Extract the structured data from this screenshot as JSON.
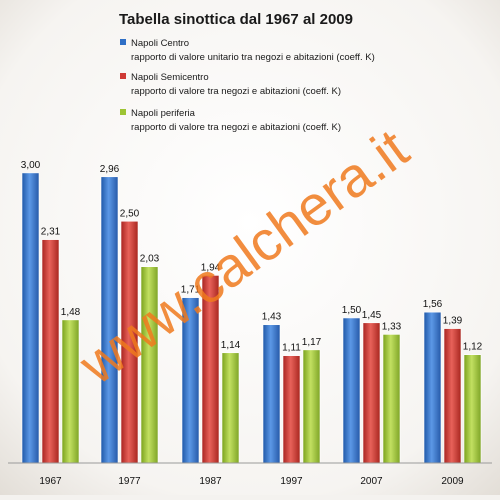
{
  "chart_data": {
    "type": "bar",
    "title": "Tabella sinottica  dal 1967 al 2009",
    "categories": [
      "1967",
      "1977",
      "1987",
      "1997",
      "2007",
      "2009"
    ],
    "series": [
      {
        "name": "Napoli Centro",
        "description": "rapporto di valore unitario   tra negozi e abitazioni (coeff. K)",
        "color": "#2f6fc6",
        "values": [
          3.0,
          2.96,
          1.71,
          1.43,
          1.5,
          1.56
        ],
        "labels": [
          "3,00",
          "2,96",
          "1,71",
          "1,43",
          "1,50",
          "1,56"
        ]
      },
      {
        "name": "Napoli Semicentro",
        "description": "rapporto di valore  tra negozi e abitazioni (coeff. K)",
        "color": "#cf3a35",
        "values": [
          2.31,
          2.5,
          1.94,
          1.11,
          1.45,
          1.39
        ],
        "labels": [
          "2,31",
          "2,50",
          "1,94",
          "1,11",
          "1,45",
          "1,39"
        ]
      },
      {
        "name": "Napoli periferia",
        "description": "rapporto di valore  tra negozi e abitazioni (coeff. K)",
        "color": "#9dc434",
        "values": [
          1.48,
          2.03,
          1.14,
          1.17,
          1.33,
          1.12
        ],
        "labels": [
          "1,48",
          "2,03",
          "1,14",
          "1,17",
          "1,33",
          "1,12"
        ]
      }
    ],
    "ylim": [
      0,
      3.2
    ],
    "grid": false,
    "legend_position": "top-center"
  },
  "watermark": "www.calchera.it",
  "colors": {
    "background": "#f4f2ef",
    "watermark": "#f07a1e"
  }
}
